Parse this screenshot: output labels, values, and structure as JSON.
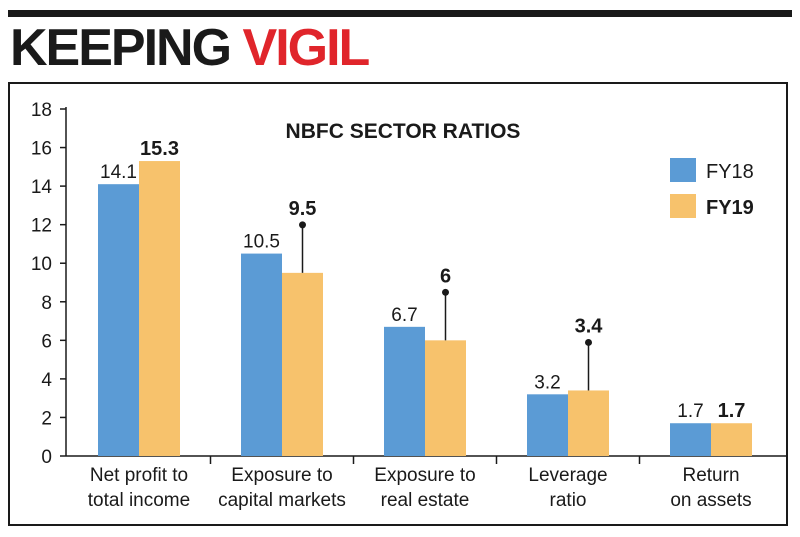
{
  "headline": {
    "part1": "KEEPING",
    "part2": "VIGIL"
  },
  "colors": {
    "fy18": "#5b9bd5",
    "fy19": "#f7c26c",
    "accent": "#e0252b",
    "ink": "#1a1a1a"
  },
  "chart_data": {
    "type": "bar",
    "title": "NBFC SECTOR RATIOS",
    "categories": [
      [
        "Net profit to",
        "total income"
      ],
      [
        "Exposure to",
        "capital markets"
      ],
      [
        "Exposure to",
        "real estate"
      ],
      [
        "Leverage",
        "ratio"
      ],
      [
        "Return",
        "on assets"
      ]
    ],
    "series": [
      {
        "name": "FY18",
        "values": [
          14.1,
          10.5,
          6.7,
          3.2,
          1.7
        ],
        "labels": [
          "14.1",
          "10.5",
          "6.7",
          "3.2",
          "1.7"
        ]
      },
      {
        "name": "FY19",
        "values": [
          15.3,
          9.5,
          6,
          3.4,
          1.7
        ],
        "labels": [
          "15.3",
          "9.5",
          "6",
          "3.4",
          "1.7"
        ]
      }
    ],
    "ylim": [
      0,
      18
    ],
    "yticks": [
      0,
      2,
      4,
      6,
      8,
      10,
      12,
      14,
      16,
      18
    ],
    "legend": "top-right",
    "grid": false
  }
}
